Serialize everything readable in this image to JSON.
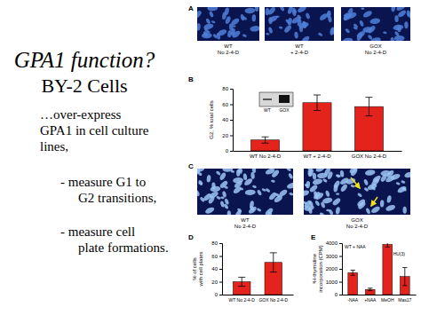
{
  "slide": {
    "title": "GPA1 function?",
    "subtitle": "BY-2 Cells",
    "lines": [
      "…over-express",
      "GPA1 in cell culture",
      "lines,"
    ],
    "bullets": [
      [
        "- measure G1 to",
        "G2 transitions,"
      ],
      [
        "- measure cell",
        "plate formations."
      ]
    ]
  },
  "figure": {
    "panel_labels": [
      "A",
      "B",
      "C",
      "D",
      "E"
    ],
    "panel_a_images": [
      [
        "WT",
        "No 2-4-D"
      ],
      [
        "WT",
        "+ 2-4-D"
      ],
      [
        "GOX",
        "No 2-4-D"
      ]
    ],
    "panel_c_images": [
      [
        "WT",
        "No 2-4-D"
      ],
      [
        "GOX",
        "No 2-4-D"
      ]
    ]
  },
  "chart_data": [
    {
      "type": "bar",
      "y_label": [
        "G2, % total cells"
      ],
      "categories": [
        "WT No 2-4-D",
        "WT + 2-4-D",
        "GOX No 2-4-D"
      ],
      "values": [
        14,
        62,
        57
      ],
      "errors": [
        4,
        10,
        12
      ],
      "color": "#e3231c",
      "ylim": [
        0,
        80
      ],
      "yticks": [
        0,
        20,
        40,
        60,
        80
      ],
      "annotations": [
        "WT",
        "GOX"
      ]
    },
    {
      "type": "bar",
      "y_label": [
        "% of cells",
        "with cell plates"
      ],
      "categories": [
        "WT No 2-4-D",
        "GOX No 2-4-D"
      ],
      "values": [
        20,
        50
      ],
      "errors": [
        7,
        15
      ],
      "color": "#e3231c",
      "ylim": [
        0,
        80
      ],
      "yticks": [
        0,
        20,
        40,
        60,
        80
      ]
    },
    {
      "type": "bar",
      "y_label": [
        "³H-thymidine",
        "incorporation (CPM)"
      ],
      "categories": [
        "-NAA",
        "+NAA",
        "MeOH",
        "Mas17"
      ],
      "values": [
        1700,
        400,
        3900,
        1400
      ],
      "errors": [
        200,
        100,
        200,
        700
      ],
      "color": "#e3231c",
      "ylim": [
        0,
        4000
      ],
      "yticks": [
        0,
        1000,
        2000,
        3000,
        4000
      ],
      "annotations": [
        "WT + NAA",
        "HU(3)"
      ]
    }
  ]
}
